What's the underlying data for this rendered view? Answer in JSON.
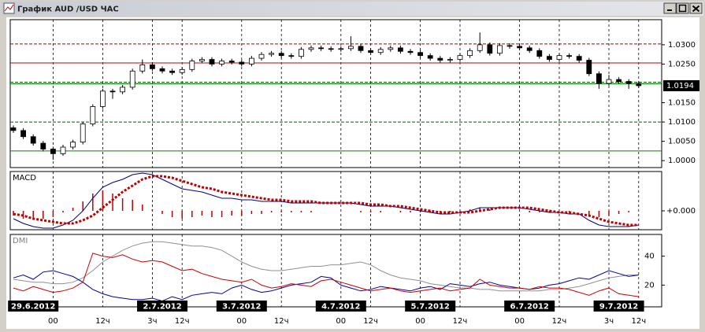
{
  "window": {
    "title": "График AUD /USD  ЧАС"
  },
  "chart_data": [
    {
      "type": "candlestick",
      "open": [
        1.0085,
        1.0078,
        1.0062,
        1.0045,
        1.003,
        1.0018,
        1.0035,
        1.0048,
        1.0095,
        1.014,
        1.018,
        1.0178,
        1.019,
        1.0232,
        1.0248,
        1.0238,
        1.0232,
        1.0228,
        1.0236,
        1.0258,
        1.0262,
        1.025,
        1.0258,
        1.0255,
        1.025,
        1.0265,
        1.0275,
        1.0278,
        1.0272,
        1.027,
        1.0288,
        1.0292,
        1.029,
        1.0288,
        1.029,
        1.0296,
        1.0285,
        1.028,
        1.0288,
        1.0292,
        1.0283,
        1.028,
        1.0272,
        1.0265,
        1.026,
        1.0262,
        1.0272,
        1.0285,
        1.03,
        1.0278,
        1.0298,
        1.0296,
        1.0292,
        1.0285,
        1.027,
        1.0262,
        1.0272,
        1.027,
        1.026,
        1.0225,
        1.02,
        1.021,
        1.0205,
        1.02
      ],
      "high": [
        1.0091,
        1.0084,
        1.0068,
        1.0051,
        1.0036,
        1.0041,
        1.0054,
        1.0101,
        1.0146,
        1.0186,
        1.0186,
        1.0196,
        1.0238,
        1.0262,
        1.0254,
        1.0244,
        1.0238,
        1.0242,
        1.0264,
        1.0268,
        1.0268,
        1.0264,
        1.0264,
        1.0261,
        1.0271,
        1.0281,
        1.0284,
        1.0284,
        1.0278,
        1.0294,
        1.0298,
        1.0298,
        1.0296,
        1.0296,
        1.0322,
        1.0302,
        1.0291,
        1.0294,
        1.0298,
        1.0298,
        1.0289,
        1.0286,
        1.0278,
        1.0271,
        1.0268,
        1.0278,
        1.0291,
        1.0332,
        1.0306,
        1.0304,
        1.0304,
        1.0302,
        1.0298,
        1.0291,
        1.0276,
        1.0278,
        1.0278,
        1.0276,
        1.0266,
        1.0231,
        1.0222,
        1.0216,
        1.0211,
        1.0206
      ],
      "low": [
        1.0072,
        1.0056,
        1.0039,
        1.0024,
        1.0002,
        1.0012,
        1.0029,
        1.0042,
        1.0089,
        1.0134,
        1.016,
        1.0172,
        1.0184,
        1.0226,
        1.0232,
        1.0226,
        1.0222,
        1.0222,
        1.023,
        1.0252,
        1.0244,
        1.0244,
        1.0249,
        1.0244,
        1.0244,
        1.0259,
        1.0269,
        1.0266,
        1.0264,
        1.0264,
        1.0282,
        1.0284,
        1.0282,
        1.0282,
        1.0284,
        1.0279,
        1.0274,
        1.0274,
        1.0282,
        1.0277,
        1.0274,
        1.0266,
        1.0259,
        1.0254,
        1.0254,
        1.0256,
        1.0266,
        1.0279,
        1.0272,
        1.0272,
        1.029,
        1.0286,
        1.0279,
        1.0264,
        1.0256,
        1.0256,
        1.0264,
        1.0254,
        1.0219,
        1.0186,
        1.0194,
        1.0199,
        1.0186,
        1.0188
      ],
      "close": [
        1.0078,
        1.0062,
        1.0045,
        1.003,
        1.0018,
        1.0035,
        1.0048,
        1.0095,
        1.014,
        1.018,
        1.0178,
        1.019,
        1.0232,
        1.0248,
        1.0238,
        1.0232,
        1.0228,
        1.0236,
        1.0258,
        1.0262,
        1.025,
        1.0258,
        1.0255,
        1.025,
        1.0265,
        1.0275,
        1.0278,
        1.0272,
        1.027,
        1.0288,
        1.0292,
        1.029,
        1.0288,
        1.029,
        1.0296,
        1.0285,
        1.028,
        1.0288,
        1.0292,
        1.0283,
        1.028,
        1.0272,
        1.0265,
        1.026,
        1.0262,
        1.0272,
        1.0285,
        1.03,
        1.0278,
        1.0298,
        1.0296,
        1.0292,
        1.0285,
        1.027,
        1.0262,
        1.0272,
        1.027,
        1.026,
        1.0225,
        1.02,
        1.021,
        1.0205,
        1.02,
        1.0194
      ],
      "up_color": "#ffffff",
      "down_color": "#000000",
      "ylim": [
        0.9982,
        1.0365
      ],
      "yticks": [
        {
          "value": 1.0,
          "label": "1.0000"
        },
        {
          "value": 1.005,
          "label": "1.0050"
        },
        {
          "value": 1.01,
          "label": "1.0100"
        },
        {
          "value": 1.015,
          "label": "1.0150"
        },
        {
          "value": 1.025,
          "label": "1.0250"
        },
        {
          "value": 1.03,
          "label": "1.0300"
        }
      ],
      "levels": [
        {
          "value": 1.0302,
          "color": "#a00000",
          "style": "dashed"
        },
        {
          "value": 1.0253,
          "color": "#c00000",
          "style": "solid"
        },
        {
          "value": 1.0203,
          "color": "#006000",
          "style": "dashed"
        },
        {
          "value": 1.0199,
          "color": "#008000",
          "style": "solid"
        },
        {
          "value": 1.01,
          "color": "#006000",
          "style": "dashed"
        },
        {
          "value": 1.0025,
          "color": "#008000",
          "style": "solid"
        }
      ]
    },
    {
      "type": "macd",
      "title": "MACD",
      "ylim": [
        -0.0012,
        0.0025
      ],
      "yticks": [
        {
          "value": 0,
          "label": "+0.000"
        }
      ],
      "histogram": {
        "color": "#c00000",
        "values": [
          -0.0003,
          -0.0005,
          -0.0005,
          -0.0005,
          -0.0004,
          -0.0001,
          0.0002,
          0.0006,
          0.0011,
          0.0013,
          0.0011,
          0.0008,
          0.0007,
          0.0004,
          0.0001,
          -0.0002,
          -0.0004,
          -0.0005,
          -0.0004,
          -0.0003,
          -0.0004,
          -0.0004,
          -0.0003,
          -0.0003,
          -0.0002,
          -0.0002,
          -0.0001,
          -0.0001,
          -0.0001,
          -0.0001,
          -0.0001,
          0,
          0,
          0,
          0,
          -0.0001,
          -0.0001,
          -0.0001,
          0,
          -0.0001,
          -0.0001,
          -0.0001,
          -0.0001,
          -0.0001,
          -0.0001,
          0,
          0.0001,
          0.0002,
          0.0001,
          0,
          0,
          0,
          -0.0001,
          -0.0001,
          -0.0001,
          0,
          -0.0001,
          0,
          -0.0003,
          -0.0004,
          -0.0003,
          -0.0002,
          -0.0001,
          0
        ]
      },
      "series": [
        {
          "color": "#000080",
          "style": "solid",
          "values": [
            -0.0005,
            -0.0008,
            -0.001,
            -0.0011,
            -0.0011,
            -0.0009,
            -0.0006,
            0,
            0.0008,
            0.0015,
            0.0018,
            0.002,
            0.0023,
            0.0024,
            0.0023,
            0.002,
            0.0017,
            0.0014,
            0.0013,
            0.0012,
            0.001,
            0.0008,
            0.0008,
            0.0007,
            0.0007,
            0.0006,
            0.0006,
            0.0006,
            0.0005,
            0.0005,
            0.0005,
            0.0005,
            0.0005,
            0.0005,
            0.0005,
            0.0004,
            0.0003,
            0.0003,
            0.0003,
            0.0002,
            0.0001,
            0,
            -0.0001,
            -0.0002,
            -0.0002,
            -0.0001,
            0,
            0.0002,
            0.0002,
            0.0002,
            0.0002,
            0.0002,
            0.0001,
            0,
            -0.0001,
            -0.0001,
            -0.0002,
            -0.0002,
            -0.0006,
            -0.0009,
            -0.001,
            -0.001,
            -0.001,
            -0.0009
          ]
        },
        {
          "color": "#c00000",
          "style": "dotted",
          "values": [
            -0.0002,
            -0.0003,
            -0.0005,
            -0.0006,
            -0.0007,
            -0.0008,
            -0.0008,
            -0.0006,
            -0.0003,
            0.0002,
            0.0007,
            0.0012,
            0.0016,
            0.002,
            0.0022,
            0.0022,
            0.0021,
            0.0019,
            0.0017,
            0.0015,
            0.0014,
            0.0012,
            0.0011,
            0.001,
            0.0009,
            0.0008,
            0.0007,
            0.0007,
            0.0006,
            0.0006,
            0.0006,
            0.0005,
            0.0005,
            0.0005,
            0.0005,
            0.0005,
            0.0004,
            0.0004,
            0.0003,
            0.0003,
            0.0002,
            0.0001,
            0,
            -0.0001,
            -0.0001,
            -0.0001,
            -0.0001,
            0,
            0.0001,
            0.0002,
            0.0002,
            0.0002,
            0.0002,
            0.0001,
            0,
            -0.0001,
            -0.0001,
            -0.0002,
            -0.0003,
            -0.0005,
            -0.0007,
            -0.0008,
            -0.0009,
            -0.0009
          ]
        }
      ]
    },
    {
      "type": "line",
      "title": "DMI",
      "ylim": [
        5,
        55
      ],
      "yticks": [
        20,
        40
      ],
      "categories": [
        null,
        null,
        "29.6.2012",
        null,
        null,
        null,
        null,
        null,
        null,
        null,
        null,
        null,
        null,
        null,
        null,
        "2.7.2012",
        null,
        null,
        null,
        null,
        null,
        null,
        null,
        "3.7.2012",
        null,
        null,
        null,
        null,
        null,
        null,
        null,
        null,
        null,
        "4.7.2012",
        null,
        null,
        null,
        null,
        null,
        null,
        null,
        null,
        "5.7.2012",
        null,
        null,
        null,
        null,
        null,
        null,
        null,
        null,
        null,
        "6.7.2012",
        null,
        null,
        null,
        null,
        null,
        null,
        null,
        null,
        "9.7.2012",
        null,
        null
      ],
      "time_labels": [
        null,
        null,
        null,
        null,
        "00",
        null,
        null,
        null,
        null,
        "12ч",
        null,
        null,
        null,
        null,
        "3ч",
        null,
        null,
        "12ч",
        null,
        null,
        null,
        null,
        null,
        "00",
        null,
        null,
        null,
        "12ч",
        null,
        null,
        null,
        null,
        null,
        "00",
        null,
        null,
        "12ч",
        null,
        null,
        null,
        null,
        "00",
        null,
        null,
        null,
        "12ч",
        null,
        null,
        null,
        null,
        null,
        "00",
        null,
        null,
        null,
        "12ч",
        null,
        null,
        null,
        null,
        "3ч",
        null,
        null,
        "12ч"
      ],
      "series": [
        {
          "color": "#909090",
          "values": [
            24,
            23,
            22,
            22,
            21,
            21,
            22,
            25,
            30,
            36,
            40,
            44,
            47,
            49,
            50,
            50,
            49,
            48,
            47,
            47,
            46,
            44,
            40,
            36,
            33,
            31,
            30,
            30,
            31,
            32,
            33,
            33,
            34,
            34,
            35,
            36,
            34,
            30,
            27,
            25,
            24,
            23,
            21,
            20,
            19,
            18,
            18,
            17,
            17,
            16,
            16,
            16,
            16,
            16,
            17,
            17,
            18,
            19,
            21,
            23,
            25,
            26,
            27,
            27
          ]
        },
        {
          "color": "#0000a0",
          "values": [
            25,
            27,
            24,
            29,
            30,
            28,
            26,
            22,
            17,
            14,
            12,
            11,
            10,
            10,
            11,
            9,
            12,
            10,
            13,
            14,
            15,
            14,
            18,
            20,
            17,
            15,
            16,
            18,
            20,
            21,
            22,
            26,
            25,
            20,
            18,
            16,
            17,
            19,
            18,
            17,
            16,
            18,
            19,
            17,
            21,
            20,
            19,
            21,
            22,
            20,
            19,
            18,
            17,
            18,
            20,
            21,
            23,
            25,
            24,
            27,
            30,
            28,
            26,
            27
          ]
        },
        {
          "color": "#d00000",
          "values": [
            18,
            16,
            19,
            17,
            15,
            16,
            18,
            22,
            42,
            40,
            39,
            41,
            38,
            36,
            37,
            36,
            33,
            30,
            31,
            28,
            26,
            24,
            23,
            22,
            24,
            20,
            18,
            19,
            21,
            20,
            19,
            23,
            24,
            22,
            20,
            18,
            16,
            17,
            18,
            16,
            15,
            16,
            17,
            18,
            16,
            17,
            18,
            24,
            20,
            19,
            18,
            18,
            17,
            19,
            18,
            18,
            17,
            15,
            13,
            16,
            18,
            14,
            13,
            12
          ]
        }
      ]
    }
  ]
}
